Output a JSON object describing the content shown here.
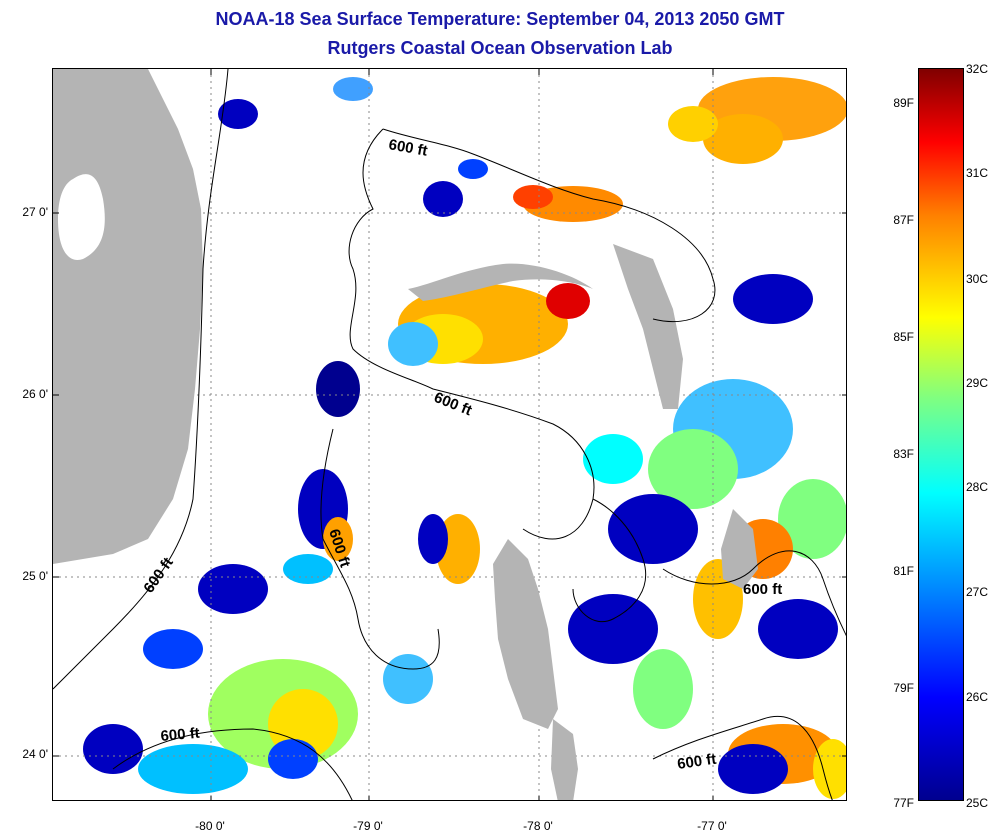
{
  "title": "NOAA-18 Sea Surface Temperature:  September 04, 2013 2050 GMT",
  "subtitle": "Rutgers Coastal Ocean Observation Lab",
  "latitude_labels": [
    "27 0'",
    "26 0'",
    "25 0'",
    "24 0'"
  ],
  "longitude_labels": [
    "-80 0'",
    "-79 0'",
    "-78 0'",
    "-77 0'"
  ],
  "depth_contour_label": "600 ft",
  "colorbar": {
    "fahrenheit_labels": [
      "89F",
      "87F",
      "85F",
      "83F",
      "81F",
      "79F",
      "77F"
    ],
    "celsius_labels": [
      "32C",
      "31C",
      "30C",
      "29C",
      "28C",
      "27C",
      "26C",
      "25C"
    ],
    "min_c": 25,
    "max_c": 32,
    "colors": [
      "#00008f",
      "#0000ff",
      "#0080ff",
      "#00ffff",
      "#80ff80",
      "#ffff00",
      "#ff8000",
      "#ff0000",
      "#800000"
    ]
  },
  "land_color": "#b4b4b4"
}
